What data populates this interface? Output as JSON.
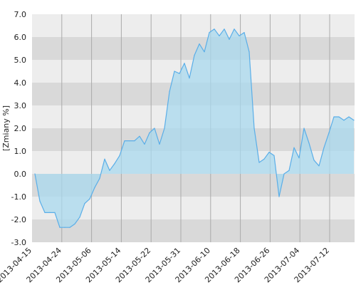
{
  "chart_data": {
    "type": "area",
    "title": "",
    "xlabel": "",
    "ylabel": "[Zmiany %]",
    "ylim": [
      -3.0,
      7.0
    ],
    "yticks": [
      "-3.0",
      "-2.0",
      "-1.0",
      "0.0",
      "1.0",
      "2.0",
      "3.0",
      "4.0",
      "5.0",
      "6.0",
      "7.0"
    ],
    "xticks": [
      "2013-04-15",
      "2013-04-24",
      "2013-05-06",
      "2013-05-14",
      "2013-05-22",
      "2013-05-31",
      "2013-06-10",
      "2013-06-18",
      "2013-06-26",
      "2013-07-04",
      "2013-07-12"
    ],
    "grid": true,
    "legend": "none",
    "colors": {
      "line": "#5aaee8",
      "fill": "#a8d8ee",
      "band_dark": "#d9d9d9",
      "band_light": "#ededed",
      "gridline": "#aaaaaa"
    },
    "series": [
      {
        "values": [
          0.0,
          -1.2,
          -1.7,
          -1.7,
          -1.7,
          -2.35,
          -2.35,
          -2.35,
          -2.2,
          -1.9,
          -1.3,
          -1.1,
          -0.6,
          -0.2,
          0.65,
          0.15,
          0.45,
          0.8,
          1.45,
          1.45,
          1.45,
          1.65,
          1.3,
          1.8,
          2.0,
          1.3,
          2.0,
          3.6,
          4.5,
          4.4,
          4.85,
          4.2,
          5.2,
          5.7,
          5.35,
          6.2,
          6.35,
          6.05,
          6.35,
          5.9,
          6.35,
          6.05,
          6.2,
          5.35,
          2.0,
          0.5,
          0.65,
          0.95,
          0.8,
          -1.0,
          0.0,
          0.15,
          1.15,
          0.7,
          2.0,
          1.35,
          0.6,
          0.35,
          1.15,
          1.8,
          2.5,
          2.5,
          2.35,
          2.5,
          2.35
        ]
      }
    ]
  }
}
